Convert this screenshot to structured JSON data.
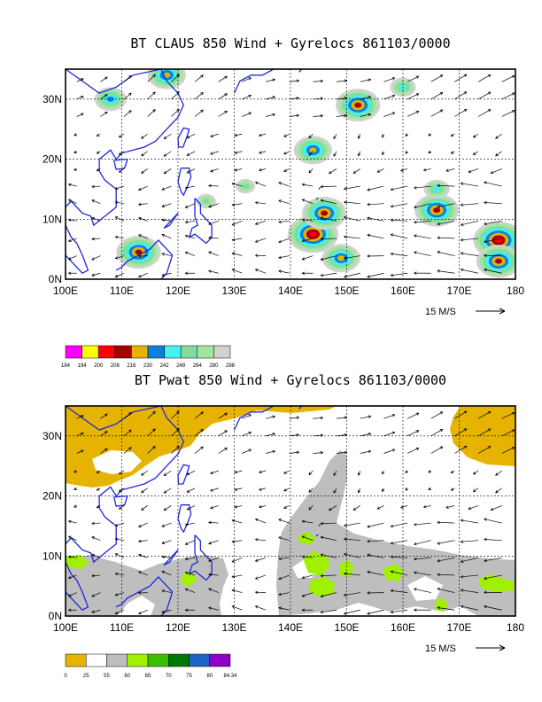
{
  "chart_data": [
    {
      "type": "heatmap",
      "title": "BT CLAUS 850 Wind + Gyrelocs 861103/0000",
      "field": "CLAUS brightness temperature",
      "x_ticks": [
        "100E",
        "110E",
        "120E",
        "130E",
        "140E",
        "150E",
        "160E",
        "170E",
        "180"
      ],
      "y_ticks": [
        "0N",
        "10N",
        "20N",
        "30N"
      ],
      "xlim": [
        100,
        180
      ],
      "ylim": [
        0,
        35
      ],
      "grid": true,
      "vector_scale_label": "15 M/S",
      "colorbar": {
        "labels": [
          "184",
          "194",
          "200",
          "208",
          "216",
          "230",
          "242",
          "248",
          "264",
          "280",
          "288"
        ],
        "colors": [
          "#ff00ff",
          "#ffff00",
          "#ff0000",
          "#a50000",
          "#e6b400",
          "#0a82dc",
          "#46f0f0",
          "#82dca0",
          "#a0e6a0",
          "#d2d2d2"
        ]
      },
      "blobs": [
        {
          "lon": 108,
          "lat": 30,
          "level": 5
        },
        {
          "lon": 118,
          "lat": 34,
          "level": 4
        },
        {
          "lon": 152,
          "lat": 29,
          "level": 3
        },
        {
          "lon": 160,
          "lat": 32,
          "level": 6
        },
        {
          "lon": 144,
          "lat": 21.5,
          "level": 4
        },
        {
          "lon": 144,
          "lat": 7.5,
          "level": 2
        },
        {
          "lon": 146,
          "lat": 11,
          "level": 3
        },
        {
          "lon": 149,
          "lat": 3.5,
          "level": 4
        },
        {
          "lon": 113,
          "lat": 4.5,
          "level": 3
        },
        {
          "lon": 166,
          "lat": 11.5,
          "level": 3
        },
        {
          "lon": 166,
          "lat": 15,
          "level": 6
        },
        {
          "lon": 177,
          "lat": 6.5,
          "level": 2
        },
        {
          "lon": 177,
          "lat": 3,
          "level": 3
        },
        {
          "lon": 132,
          "lat": 15.5,
          "level": 7
        },
        {
          "lon": 125,
          "lat": 13,
          "level": 7
        }
      ]
    },
    {
      "type": "heatmap",
      "title": "BT Pwat 850 Wind + Gyrelocs 861103/0000",
      "field": "Precipitable water",
      "x_ticks": [
        "100E",
        "110E",
        "120E",
        "130E",
        "140E",
        "150E",
        "160E",
        "170E",
        "180"
      ],
      "y_ticks": [
        "0N",
        "10N",
        "20N",
        "30N"
      ],
      "xlim": [
        100,
        180
      ],
      "ylim": [
        0,
        35
      ],
      "grid": true,
      "vector_scale_label": "15 M/S",
      "colorbar": {
        "labels": [
          "0",
          "25",
          "55",
          "60",
          "65",
          "70",
          "75",
          "80",
          "84.34"
        ],
        "colors": [
          "#e6b400",
          "#ffffff",
          "#bebebe",
          "#a0f000",
          "#3cbe00",
          "#007800",
          "#1e64c8",
          "#8c00c8"
        ]
      },
      "regions": [
        {
          "name": "dry-north-west",
          "category": "0-25"
        },
        {
          "name": "dry-north-east",
          "category": "0-25"
        },
        {
          "name": "moist-gray",
          "category": "55-60"
        },
        {
          "name": "very-moist-green",
          "category": "60-65"
        }
      ]
    }
  ]
}
